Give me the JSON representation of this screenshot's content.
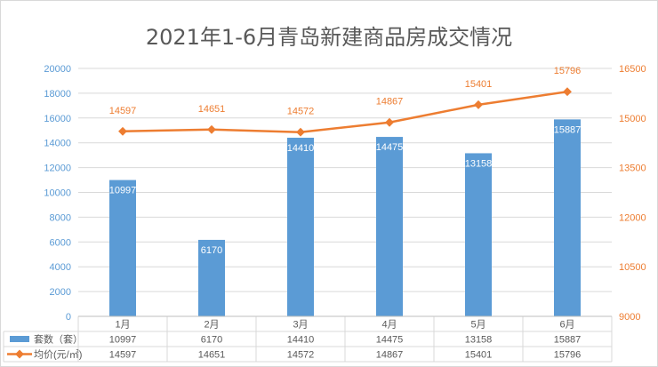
{
  "chart_data": {
    "type": "bar",
    "title": "2021年1-6月青岛新建商品房成交情况",
    "categories": [
      "1月",
      "2月",
      "3月",
      "4月",
      "5月",
      "6月"
    ],
    "series": [
      {
        "name": "套数（套）",
        "type": "bar",
        "axis": "left",
        "color": "#5b9bd5",
        "values": [
          10997,
          6170,
          14410,
          14475,
          13158,
          15887
        ],
        "labels": [
          "10997",
          "6170",
          "14410",
          "14475",
          "13158",
          "15887"
        ]
      },
      {
        "name": "均价(元/㎡)",
        "type": "line",
        "axis": "right",
        "color": "#ed7d31",
        "values": [
          14597,
          14651,
          14572,
          14867,
          15401,
          15796
        ],
        "labels": [
          "14597",
          "14651",
          "14572",
          "14867",
          "15401",
          "15796"
        ]
      }
    ],
    "y_left": {
      "min": 0,
      "max": 20000,
      "ticks": [
        "0",
        "2000",
        "4000",
        "6000",
        "8000",
        "10000",
        "12000",
        "14000",
        "16000",
        "18000",
        "20000"
      ],
      "color": "#5b9bd5"
    },
    "y_right": {
      "min": 9000,
      "max": 16500,
      "ticks": [
        "9000",
        "10500",
        "12000",
        "13500",
        "15000",
        "16500"
      ],
      "color": "#ed7d31"
    },
    "grid": true,
    "legend": "data-table-below"
  }
}
